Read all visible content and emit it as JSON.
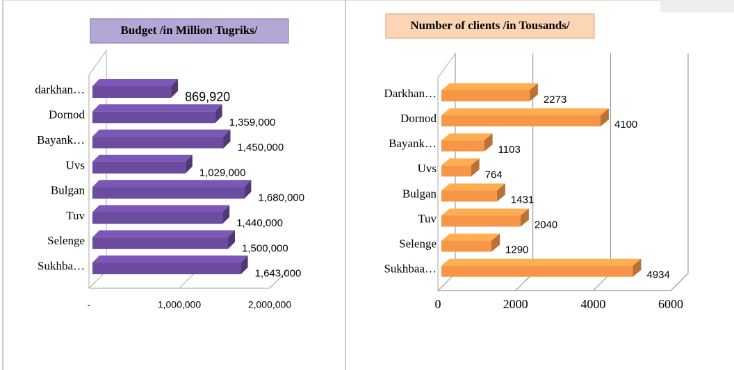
{
  "chart_data": [
    {
      "type": "bar",
      "title": "Budget /in Million Tugriks/",
      "categories": [
        "darkhan…",
        "Dornod",
        "Bayank…",
        "Uvs",
        "Bulgan",
        "Tuv",
        "Selenge",
        "Sukhba…"
      ],
      "values": [
        869920,
        1359000,
        1450000,
        1029000,
        1680000,
        1440000,
        1500000,
        1643000
      ],
      "value_labels": [
        "869,920",
        "1,359,000",
        "1,450,000",
        "1,029,000",
        "1,680,000",
        "1,440,000",
        "1,500,000",
        "1,643,000"
      ],
      "color": "#6b4c9f",
      "xlim": [
        0,
        2000000
      ],
      "xticks": [
        {
          "value": 0,
          "label": "-"
        },
        {
          "value": 1000000,
          "label": "1,000,000"
        },
        {
          "value": 2000000,
          "label": "2,000,000"
        }
      ],
      "grid": false
    },
    {
      "type": "bar",
      "title": "Number of clients /in Tousands/",
      "categories": [
        "Darkhan…",
        "Dornod",
        "Bayank…",
        "Uvs",
        "Bulgan",
        "Tuv",
        "Selenge",
        "Sukhbaa…"
      ],
      "values": [
        2273,
        4100,
        1103,
        764,
        1431,
        2040,
        1290,
        4934
      ],
      "color": "#f79646",
      "xlim": [
        0,
        6000
      ],
      "xticks": [
        0,
        2000,
        4000,
        6000
      ],
      "grid": true
    }
  ]
}
